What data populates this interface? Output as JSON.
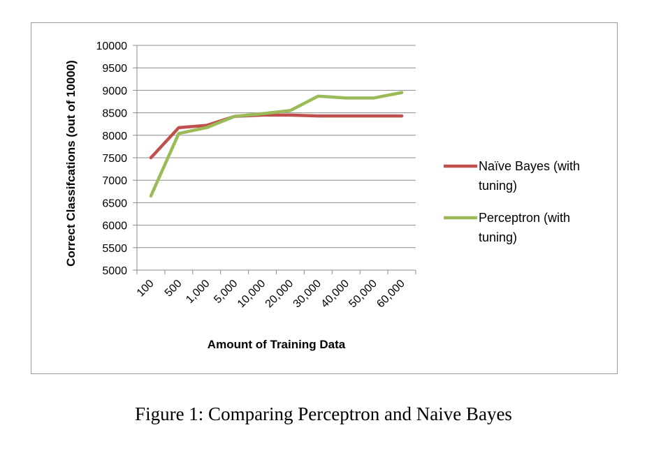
{
  "caption": "Figure 1: Comparing Perceptron and Naive Bayes",
  "colors": {
    "naive_bayes": "#c0504d",
    "perceptron": "#9bbb59",
    "grid": "#8c8c8c",
    "axis": "#8c8c8c"
  },
  "chart_data": {
    "type": "line",
    "title": "",
    "xlabel": "Amount of Training Data",
    "ylabel": "Correct Classifcations (out of 10000)",
    "categories": [
      "100",
      "500",
      "1,000",
      "5,000",
      "10,000",
      "20,000",
      "30,000",
      "40,000",
      "50,000",
      "60,000"
    ],
    "ylim": [
      5000,
      10000
    ],
    "yticks": [
      "5000",
      "5500",
      "6000",
      "6500",
      "7000",
      "7500",
      "8000",
      "8500",
      "9000",
      "9500",
      "10000"
    ],
    "grid": "horizontal",
    "legend_position": "right",
    "series": [
      {
        "name": "Naïve Bayes (with tuning)",
        "legend_lines": [
          "Naïve Bayes (with",
          "tuning)"
        ],
        "color": "#c0504d",
        "values": [
          7500,
          8170,
          8220,
          8420,
          8450,
          8450,
          8430,
          8430,
          8430,
          8430
        ]
      },
      {
        "name": "Perceptron (with tuning)",
        "legend_lines": [
          "Perceptron (with",
          "tuning)"
        ],
        "color": "#9bbb59",
        "values": [
          6650,
          8040,
          8170,
          8420,
          8480,
          8550,
          8870,
          8830,
          8830,
          8950
        ]
      }
    ]
  }
}
